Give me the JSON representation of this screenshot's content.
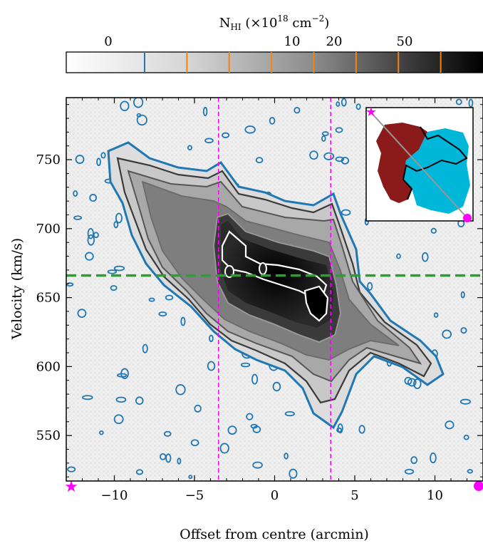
{
  "colorbar": {
    "title_main": "N",
    "title_sub": "HI",
    "title_rest_open": " (×10",
    "title_exp": "18",
    "title_unit": " cm",
    "title_unit_exp": "−2",
    "title_close": ")",
    "tick_labels": [
      "0",
      "10",
      "20",
      "50"
    ],
    "contour_levels": [
      {
        "color": "#1f77b4"
      },
      {
        "color": "#ff7f0e"
      },
      {
        "color": "#ff7f0e"
      },
      {
        "color": "#ff7f0e"
      },
      {
        "color": "#ff7f0e"
      },
      {
        "color": "#ff7f0e"
      },
      {
        "color": "#ff7f0e"
      },
      {
        "color": "#ff7f0e"
      }
    ]
  },
  "chart_data": {
    "type": "heatmap",
    "subtype": "position-velocity diagram",
    "xlabel": "Offset from centre (arcmin)",
    "ylabel": "Velocity (km/s)",
    "xlim": [
      -13,
      13
    ],
    "ylim": [
      517,
      795
    ],
    "x_ticks": [
      -10,
      -5,
      0,
      5,
      10
    ],
    "y_ticks": [
      550,
      600,
      650,
      700,
      750
    ],
    "systemic_velocity": 666,
    "slice_markers": [
      -3.5,
      3.5
    ],
    "ridge": [
      {
        "x": -10,
        "v": 745
      },
      {
        "x": -6,
        "v": 722
      },
      {
        "x": -3.5,
        "v": 695
      },
      {
        "x": 0,
        "v": 668
      },
      {
        "x": 3,
        "v": 645
      },
      {
        "x": 6,
        "v": 620
      },
      {
        "x": 10,
        "v": 595
      }
    ],
    "grid": false,
    "colors": {
      "outer_contour": "#1f77b4",
      "systemic_line": "#2ca02c",
      "markers": "#ff00ff",
      "inset_approaching": "#00b7d9",
      "inset_receding": "#8b1a1a"
    }
  }
}
